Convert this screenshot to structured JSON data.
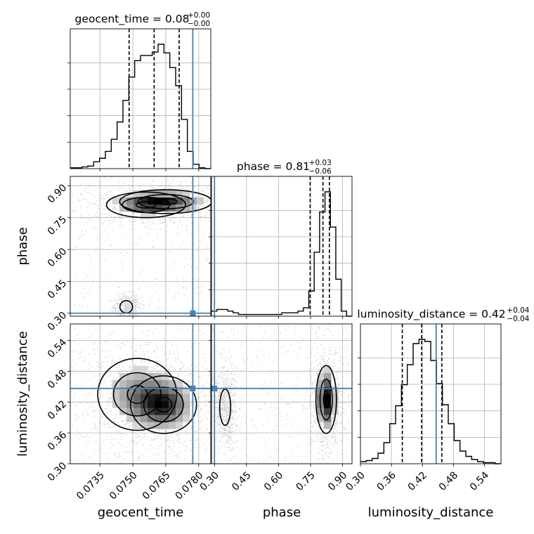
{
  "chart_data": {
    "type": "corner",
    "parameters": [
      "geocent_time",
      "phase",
      "luminosity_distance"
    ],
    "truth_color": "#4682b4",
    "titles": [
      {
        "param": "geocent_time",
        "label": "geocent_time = 0.08",
        "sup": "+0.00",
        "sub": "−0.00"
      },
      {
        "param": "phase",
        "label": "phase = 0.81",
        "sup": "+0.03",
        "sub": "−0.06"
      },
      {
        "param": "luminosity_distance",
        "label": "luminosity_distance = 0.42",
        "sup": "+0.04",
        "sub": "−0.04"
      }
    ],
    "axis_labels": {
      "x": [
        "geocent_time",
        "phase",
        "luminosity_distance"
      ],
      "y": [
        "phase",
        "luminosity_distance"
      ]
    },
    "ranges": {
      "geocent_time": [
        0.07215,
        0.07855
      ],
      "phase": [
        0.286,
        0.944
      ],
      "luminosity_distance": [
        0.3,
        0.572
      ]
    },
    "ticks": {
      "geocent_time": [
        "0.0735",
        "0.0750",
        "0.0765",
        "0.0780"
      ],
      "phase": [
        "0.30",
        "0.45",
        "0.60",
        "0.75",
        "0.90"
      ],
      "luminosity_distance": [
        "0.30",
        "0.36",
        "0.42",
        "0.48",
        "0.54"
      ]
    },
    "truths": {
      "geocent_time": 0.07773,
      "phase": 0.3,
      "luminosity_distance": 0.4465
    },
    "quantiles": {
      "geocent_time": [
        0.07483,
        0.07597,
        0.07711
      ],
      "phase": [
        0.748,
        0.808,
        0.838
      ],
      "luminosity_distance": [
        0.381,
        0.4185,
        0.4575
      ]
    },
    "histograms": {
      "geocent_time": {
        "edges_range": [
          0.07215,
          0.07855
        ],
        "counts": [
          1,
          1,
          2,
          3,
          8,
          12,
          20,
          34,
          54,
          79,
          106,
          125,
          131,
          131,
          135,
          144,
          134,
          117,
          96,
          57,
          20,
          5,
          1,
          0
        ]
      },
      "phase": {
        "edges_range": [
          0.286,
          0.944
        ],
        "counts": [
          3,
          4,
          4,
          3,
          2,
          1,
          1,
          1,
          1,
          1,
          1,
          1,
          1,
          2,
          2,
          2,
          3,
          5,
          15,
          38,
          62,
          74,
          53,
          22,
          3,
          0
        ]
      },
      "luminosity_distance": {
        "edges_range": [
          0.3,
          0.572
        ],
        "counts": [
          2,
          3,
          5,
          10,
          20,
          38,
          55,
          75,
          94,
          114,
          118,
          116,
          98,
          76,
          56,
          38,
          22,
          12,
          7,
          4,
          2,
          1,
          1,
          0
        ]
      }
    },
    "density_peaks": {
      "phase_vs_geocent_time": [
        {
          "x": 0.0765,
          "y": 0.825,
          "sx": 0.00105,
          "sy": 0.028,
          "w": 1.0
        },
        {
          "x": 0.0756,
          "y": 0.81,
          "sx": 0.0009,
          "sy": 0.03,
          "w": 0.7
        },
        {
          "x": 0.0747,
          "y": 0.33,
          "sx": 0.00018,
          "sy": 0.018,
          "w": 0.12
        }
      ],
      "luminosity_distance_vs_geocent_time": [
        {
          "x": 0.0764,
          "y": 0.415,
          "sx": 0.00075,
          "sy": 0.028,
          "w": 1.0
        },
        {
          "x": 0.0752,
          "y": 0.435,
          "sx": 0.0009,
          "sy": 0.035,
          "w": 0.55
        }
      ],
      "luminosity_distance_vs_phase": [
        {
          "x": 0.823,
          "y": 0.425,
          "sx": 0.024,
          "sy": 0.033,
          "w": 1.0
        },
        {
          "x": 0.35,
          "y": 0.41,
          "sx": 0.016,
          "sy": 0.022,
          "w": 0.1
        }
      ]
    }
  }
}
